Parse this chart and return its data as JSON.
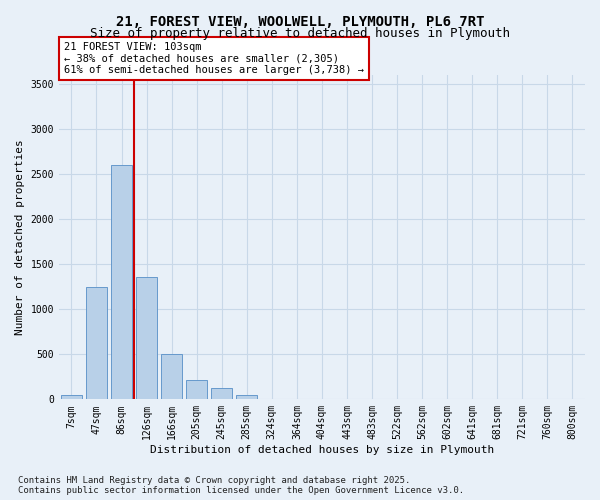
{
  "title": "21, FOREST VIEW, WOOLWELL, PLYMOUTH, PL6 7RT",
  "subtitle": "Size of property relative to detached houses in Plymouth",
  "xlabel": "Distribution of detached houses by size in Plymouth",
  "ylabel": "Number of detached properties",
  "categories": [
    "7sqm",
    "47sqm",
    "86sqm",
    "126sqm",
    "166sqm",
    "205sqm",
    "245sqm",
    "285sqm",
    "324sqm",
    "364sqm",
    "404sqm",
    "443sqm",
    "483sqm",
    "522sqm",
    "562sqm",
    "602sqm",
    "641sqm",
    "681sqm",
    "721sqm",
    "760sqm",
    "800sqm"
  ],
  "values": [
    50,
    1250,
    2600,
    1360,
    500,
    220,
    130,
    50,
    0,
    0,
    0,
    0,
    0,
    0,
    0,
    0,
    0,
    0,
    0,
    0,
    0
  ],
  "bar_color": "#b8d0e8",
  "bar_edge_color": "#6699cc",
  "property_line_x": 2.5,
  "annotation_text": "21 FOREST VIEW: 103sqm\n← 38% of detached houses are smaller (2,305)\n61% of semi-detached houses are larger (3,738) →",
  "annotation_box_color": "#ffffff",
  "annotation_box_edge_color": "#cc0000",
  "vline_color": "#cc0000",
  "grid_color": "#c8d8e8",
  "background_color": "#e8f0f8",
  "ylim": [
    0,
    3600
  ],
  "yticks": [
    0,
    500,
    1000,
    1500,
    2000,
    2500,
    3000,
    3500
  ],
  "footnote": "Contains HM Land Registry data © Crown copyright and database right 2025.\nContains public sector information licensed under the Open Government Licence v3.0.",
  "title_fontsize": 10,
  "subtitle_fontsize": 9,
  "xlabel_fontsize": 8,
  "ylabel_fontsize": 8,
  "tick_fontsize": 7,
  "annotation_fontsize": 7.5,
  "footnote_fontsize": 6.5
}
